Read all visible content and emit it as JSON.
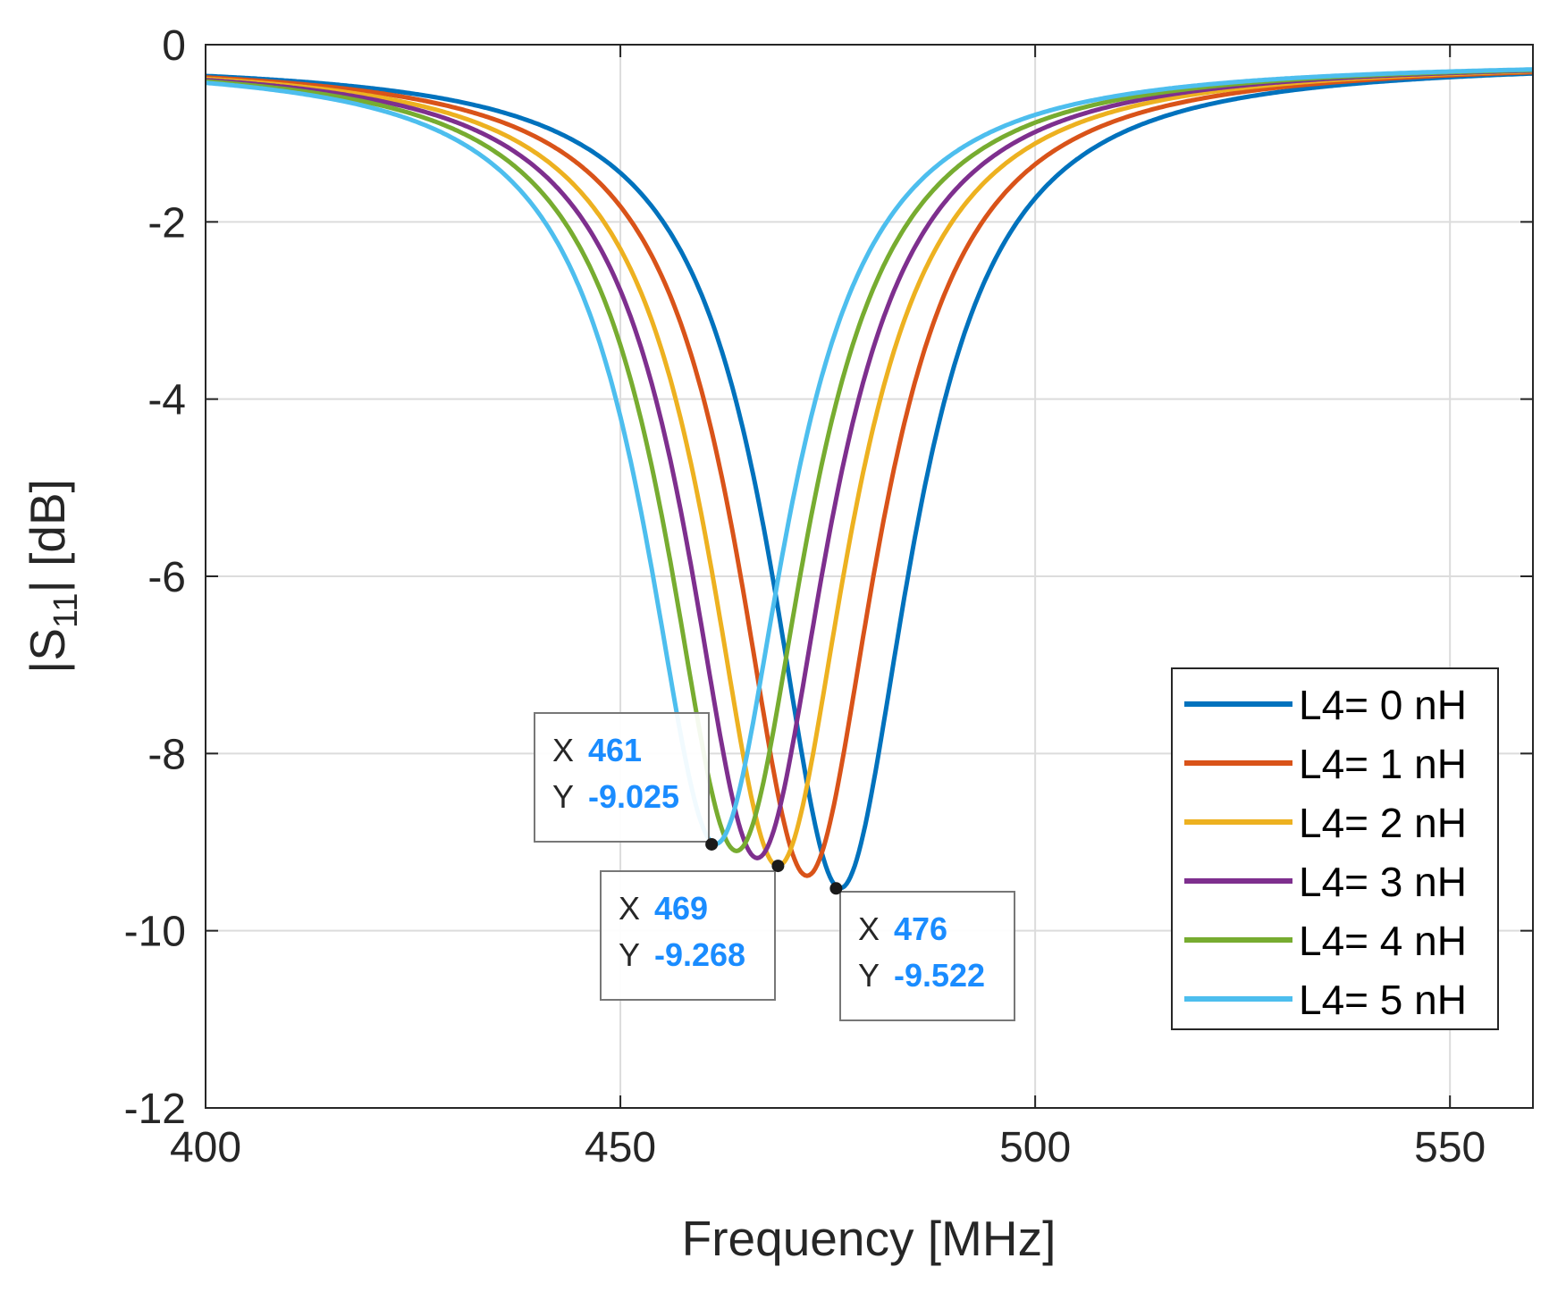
{
  "chart_data": {
    "type": "line",
    "xlabel": "Frequency [MHz]",
    "ylabel": {
      "main": "|S",
      "subscript": "11",
      "suffix": "| [dB]"
    },
    "xlim": [
      400,
      560
    ],
    "ylim": [
      -12,
      0
    ],
    "xticks": [
      400,
      450,
      500,
      550
    ],
    "yticks": [
      0,
      -2,
      -4,
      -6,
      -8,
      -10,
      -12
    ],
    "grid": true,
    "legend_position": "bottom-right",
    "series": [
      {
        "name": "L4= 0 nH",
        "color": "#0072BD",
        "f0": 476.5,
        "min_db": -9.52
      },
      {
        "name": "L4= 1 nH",
        "color": "#D95319",
        "f0": 472.5,
        "min_db": -9.38
      },
      {
        "name": "L4= 2 nH",
        "color": "#EDB120",
        "f0": 469.0,
        "min_db": -9.27
      },
      {
        "name": "L4= 3 nH",
        "color": "#7E2F8E",
        "f0": 466.5,
        "min_db": -9.18
      },
      {
        "name": "L4= 4 nH",
        "color": "#77AC30",
        "f0": 464.0,
        "min_db": -9.1
      },
      {
        "name": "L4= 5 nH",
        "color": "#4DBEEE",
        "f0": 461.5,
        "min_db": -9.02
      }
    ],
    "datatips": [
      {
        "x_label": "X",
        "y_label": "Y",
        "x": "461",
        "y": "-9.025"
      },
      {
        "x_label": "X",
        "y_label": "Y",
        "x": "469",
        "y": "-9.268"
      },
      {
        "x_label": "X",
        "y_label": "Y",
        "x": "476",
        "y": "-9.522"
      }
    ]
  }
}
